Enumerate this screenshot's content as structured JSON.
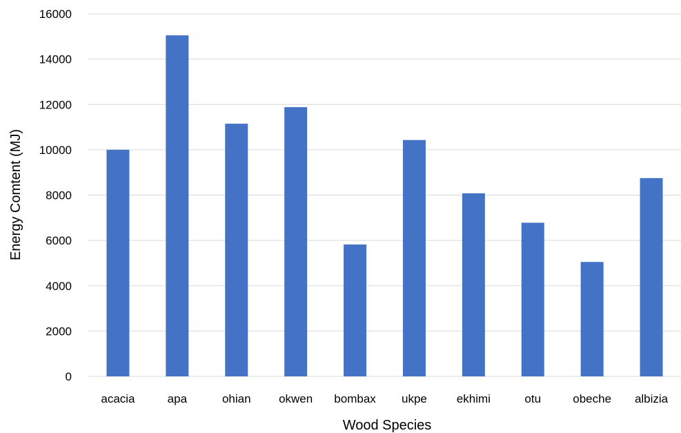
{
  "chart_data": {
    "type": "bar",
    "title": "",
    "xlabel": "Wood Species",
    "ylabel": "Energy Comtent (MJ)",
    "categories": [
      "acacia",
      "apa",
      "ohian",
      "okwen",
      "bombax",
      "ukpe",
      "ekhimi",
      "otu",
      "obeche",
      "albizia"
    ],
    "values": [
      10000,
      15050,
      11150,
      11880,
      5820,
      10430,
      8080,
      6780,
      5050,
      8750
    ],
    "ylim": [
      0,
      16000
    ],
    "yticks": [
      "0",
      "2000",
      "4000",
      "6000",
      "8000",
      "10000",
      "12000",
      "14000",
      "16000"
    ],
    "grid": true,
    "legend": "none",
    "bar_color": "#4472C4",
    "grid_color": "#D9D9D9"
  }
}
